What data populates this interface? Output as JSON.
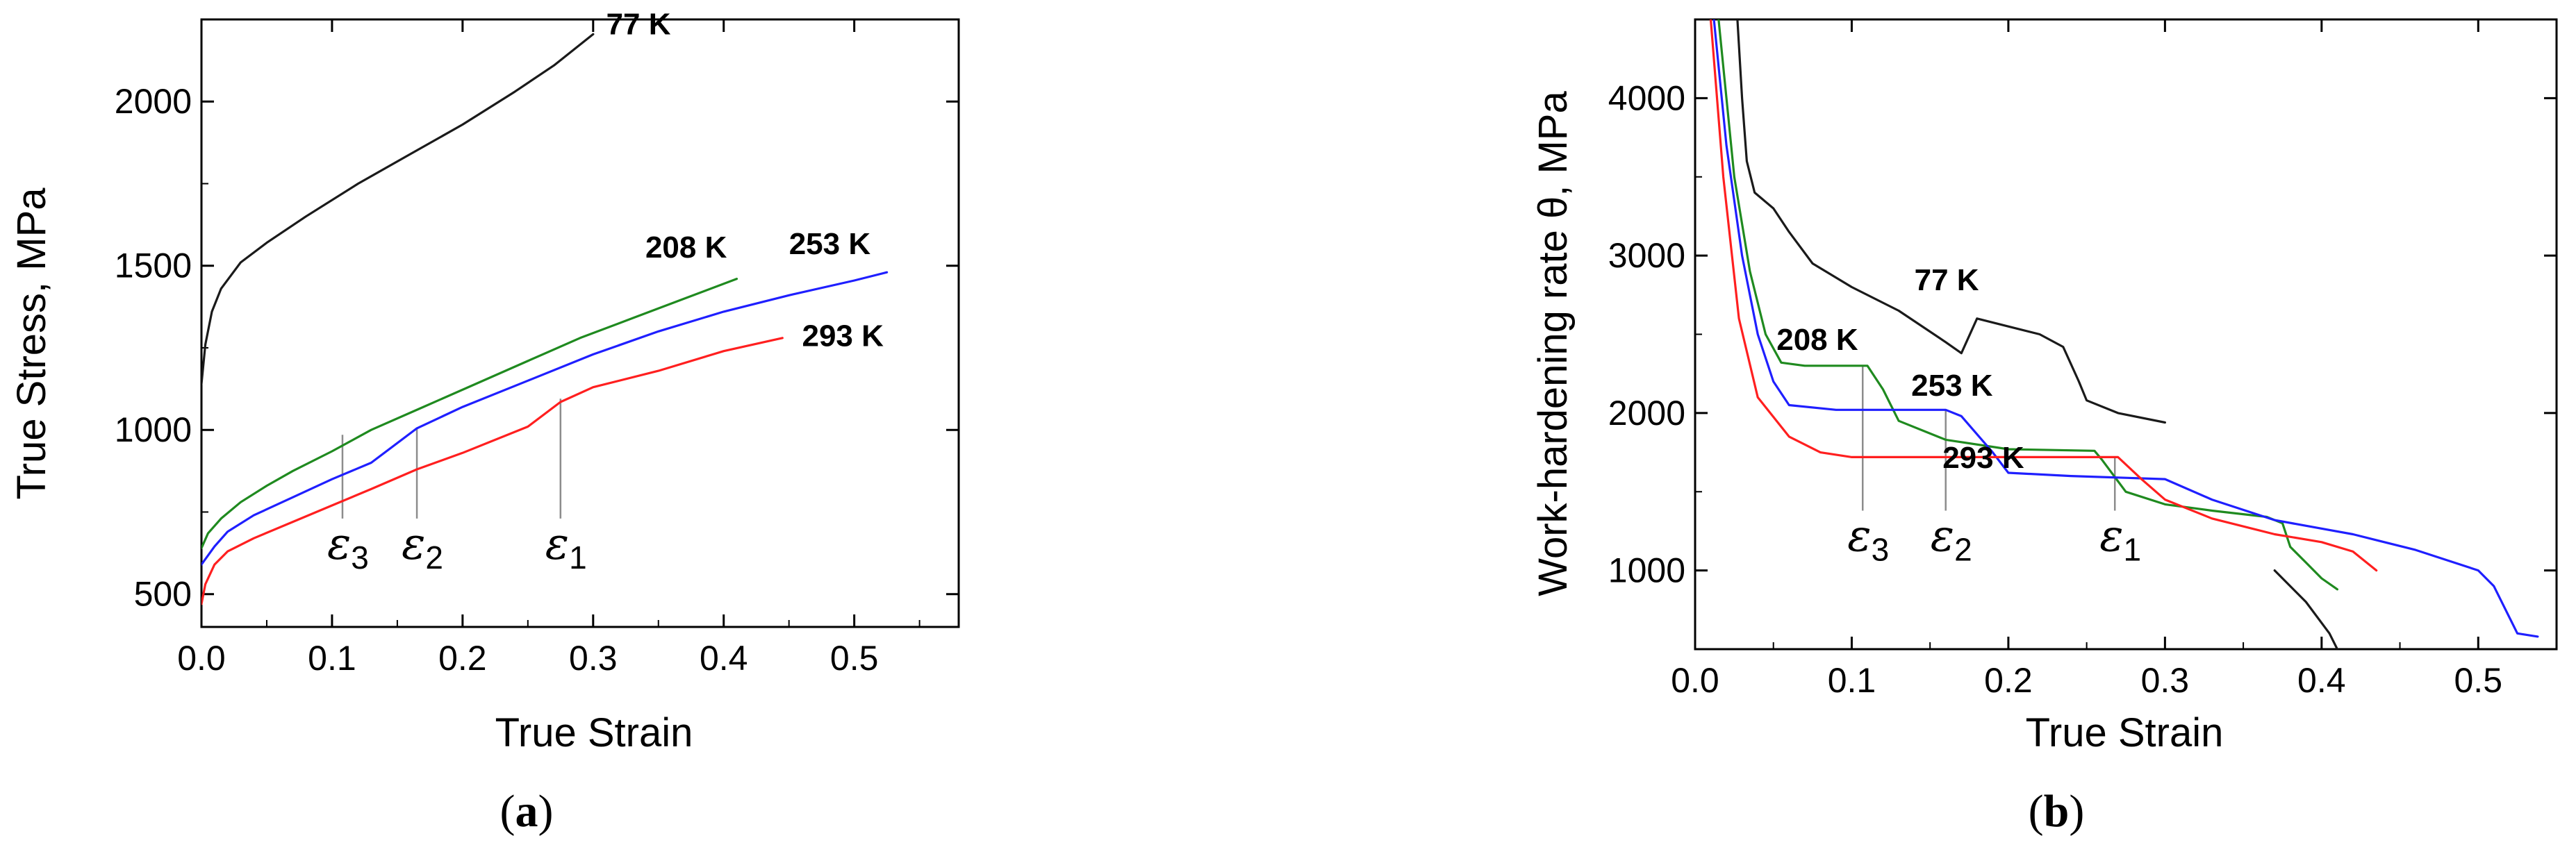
{
  "colors": {
    "77 K": "#1a1a1a",
    "208 K": "#1f8a1f",
    "253 K": "#1f1fff",
    "293 K": "#ff1f1f"
  },
  "chart_data": [
    {
      "type": "line",
      "panel_label": {
        "open": "(",
        "letter": "a",
        "close": ")"
      },
      "xlabel": "True Strain",
      "ylabel": "True Stress, MPa",
      "xlim": [
        0.0,
        0.58
      ],
      "ylim": [
        400,
        2250
      ],
      "xticks": [
        0.0,
        0.1,
        0.2,
        0.3,
        0.4,
        0.5
      ],
      "xtick_labels": [
        "0.0",
        "0.1",
        "0.2",
        "0.3",
        "0.4",
        "0.5"
      ],
      "yticks": [
        500,
        1000,
        1500,
        2000
      ],
      "ytick_labels": [
        "500",
        "1000",
        "1500",
        "2000"
      ],
      "series": [
        {
          "name": "77 K",
          "points": [
            [
              0.0,
              1140
            ],
            [
              0.003,
              1260
            ],
            [
              0.008,
              1360
            ],
            [
              0.015,
              1430
            ],
            [
              0.03,
              1510
            ],
            [
              0.05,
              1570
            ],
            [
              0.08,
              1650
            ],
            [
              0.12,
              1750
            ],
            [
              0.16,
              1840
            ],
            [
              0.2,
              1930
            ],
            [
              0.24,
              2030
            ],
            [
              0.27,
              2110
            ],
            [
              0.3,
              2205
            ]
          ]
        },
        {
          "name": "208 K",
          "points": [
            [
              0.0,
              640
            ],
            [
              0.005,
              685
            ],
            [
              0.015,
              730
            ],
            [
              0.03,
              780
            ],
            [
              0.05,
              830
            ],
            [
              0.07,
              875
            ],
            [
              0.1,
              935
            ],
            [
              0.13,
              1000
            ],
            [
              0.17,
              1070
            ],
            [
              0.21,
              1140
            ],
            [
              0.25,
              1210
            ],
            [
              0.29,
              1280
            ],
            [
              0.33,
              1340
            ],
            [
              0.37,
              1400
            ],
            [
              0.41,
              1460
            ]
          ]
        },
        {
          "name": "253 K",
          "points": [
            [
              0.0,
              590
            ],
            [
              0.01,
              645
            ],
            [
              0.02,
              690
            ],
            [
              0.04,
              740
            ],
            [
              0.07,
              795
            ],
            [
              0.1,
              850
            ],
            [
              0.13,
              900
            ],
            [
              0.165,
              1005
            ],
            [
              0.2,
              1070
            ],
            [
              0.25,
              1150
            ],
            [
              0.3,
              1230
            ],
            [
              0.35,
              1300
            ],
            [
              0.4,
              1360
            ],
            [
              0.45,
              1410
            ],
            [
              0.5,
              1455
            ],
            [
              0.525,
              1480
            ]
          ]
        },
        {
          "name": "293 K",
          "points": [
            [
              0.0,
              470
            ],
            [
              0.003,
              530
            ],
            [
              0.01,
              590
            ],
            [
              0.02,
              630
            ],
            [
              0.04,
              670
            ],
            [
              0.07,
              720
            ],
            [
              0.1,
              770
            ],
            [
              0.13,
              820
            ],
            [
              0.165,
              880
            ],
            [
              0.2,
              930
            ],
            [
              0.25,
              1010
            ],
            [
              0.275,
              1085
            ],
            [
              0.3,
              1130
            ],
            [
              0.35,
              1180
            ],
            [
              0.4,
              1240
            ],
            [
              0.445,
              1280
            ]
          ]
        }
      ],
      "annotations": [
        {
          "curve": "77 K",
          "x": 0.31,
          "y": 2205
        },
        {
          "curve": "208 K",
          "x": 0.34,
          "y": 1525
        },
        {
          "curve": "253 K",
          "x": 0.45,
          "y": 1535
        },
        {
          "curve": "293 K",
          "x": 0.46,
          "y": 1255
        }
      ],
      "markers": [
        {
          "symbol": "ε",
          "sub": "3",
          "x": 0.108,
          "y_top": 985,
          "y_bottom": 730
        },
        {
          "symbol": "ε",
          "sub": "2",
          "x": 0.165,
          "y_top": 1005,
          "y_bottom": 730
        },
        {
          "symbol": "ε",
          "sub": "1",
          "x": 0.275,
          "y_top": 1095,
          "y_bottom": 730
        }
      ]
    },
    {
      "type": "line",
      "panel_label": {
        "open": "(",
        "letter": "b",
        "close": ")"
      },
      "xlabel": "True Strain",
      "ylabel": "Work-hardening rate θ, MPa",
      "xlim": [
        0.0,
        0.55
      ],
      "ylim": [
        500,
        4500
      ],
      "xticks": [
        0.0,
        0.1,
        0.2,
        0.3,
        0.4,
        0.5
      ],
      "xtick_labels": [
        "0.0",
        "0.1",
        "0.2",
        "0.3",
        "0.4",
        "0.5"
      ],
      "yticks": [
        1000,
        2000,
        3000,
        4000
      ],
      "ytick_labels": [
        "1000",
        "2000",
        "3000",
        "4000"
      ],
      "series": [
        {
          "name": "77 K",
          "points": [
            [
              0.027,
              4500
            ],
            [
              0.03,
              4000
            ],
            [
              0.033,
              3600
            ],
            [
              0.038,
              3400
            ],
            [
              0.05,
              3300
            ],
            [
              0.06,
              3150
            ],
            [
              0.075,
              2950
            ],
            [
              0.1,
              2800
            ],
            [
              0.13,
              2650
            ],
            [
              0.16,
              2450
            ],
            [
              0.17,
              2380
            ],
            [
              0.18,
              2600
            ],
            [
              0.2,
              2550
            ],
            [
              0.22,
              2500
            ],
            [
              0.235,
              2420
            ],
            [
              0.245,
              2200
            ],
            [
              0.25,
              2080
            ],
            [
              0.27,
              2000
            ],
            [
              0.3,
              1940
            ]
          ]
        },
        {
          "name": "77 K",
          "points": [
            [
              0.37,
              1000
            ],
            [
              0.39,
              800
            ],
            [
              0.405,
              600
            ],
            [
              0.41,
              500
            ]
          ]
        },
        {
          "name": "208 K",
          "points": [
            [
              0.015,
              4500
            ],
            [
              0.025,
              3500
            ],
            [
              0.035,
              2900
            ],
            [
              0.045,
              2500
            ],
            [
              0.055,
              2320
            ],
            [
              0.07,
              2300
            ],
            [
              0.11,
              2300
            ],
            [
              0.12,
              2150
            ],
            [
              0.13,
              1950
            ],
            [
              0.16,
              1830
            ],
            [
              0.2,
              1770
            ],
            [
              0.255,
              1760
            ],
            [
              0.26,
              1700
            ],
            [
              0.275,
              1500
            ],
            [
              0.3,
              1420
            ],
            [
              0.33,
              1380
            ],
            [
              0.365,
              1340
            ],
            [
              0.375,
              1300
            ],
            [
              0.38,
              1150
            ],
            [
              0.39,
              1050
            ],
            [
              0.4,
              950
            ],
            [
              0.41,
              880
            ]
          ]
        },
        {
          "name": "253 K",
          "points": [
            [
              0.012,
              4500
            ],
            [
              0.02,
              3700
            ],
            [
              0.03,
              3000
            ],
            [
              0.04,
              2500
            ],
            [
              0.05,
              2200
            ],
            [
              0.06,
              2050
            ],
            [
              0.09,
              2020
            ],
            [
              0.16,
              2020
            ],
            [
              0.17,
              1980
            ],
            [
              0.19,
              1750
            ],
            [
              0.2,
              1620
            ],
            [
              0.24,
              1600
            ],
            [
              0.3,
              1580
            ],
            [
              0.33,
              1450
            ],
            [
              0.37,
              1320
            ],
            [
              0.42,
              1230
            ],
            [
              0.46,
              1130
            ],
            [
              0.5,
              1000
            ],
            [
              0.51,
              900
            ],
            [
              0.525,
              600
            ],
            [
              0.538,
              580
            ]
          ]
        },
        {
          "name": "293 K",
          "points": [
            [
              0.01,
              4500
            ],
            [
              0.018,
              3500
            ],
            [
              0.028,
              2600
            ],
            [
              0.04,
              2100
            ],
            [
              0.06,
              1850
            ],
            [
              0.08,
              1750
            ],
            [
              0.1,
              1720
            ],
            [
              0.27,
              1720
            ],
            [
              0.285,
              1580
            ],
            [
              0.3,
              1450
            ],
            [
              0.33,
              1330
            ],
            [
              0.37,
              1230
            ],
            [
              0.4,
              1180
            ],
            [
              0.42,
              1120
            ],
            [
              0.435,
              1000
            ]
          ]
        }
      ],
      "annotations": [
        {
          "curve": "77 K",
          "x": 0.14,
          "y": 2780
        },
        {
          "curve": "208 K",
          "x": 0.052,
          "y": 2400
        },
        {
          "curve": "253 K",
          "x": 0.138,
          "y": 2110
        },
        {
          "curve": "293 K",
          "x": 0.158,
          "y": 1650
        }
      ],
      "markers": [
        {
          "symbol": "ε",
          "sub": "3",
          "x": 0.107,
          "y_top": 2300,
          "y_bottom": 1380
        },
        {
          "symbol": "ε",
          "sub": "2",
          "x": 0.16,
          "y_top": 2020,
          "y_bottom": 1380
        },
        {
          "symbol": "ε",
          "sub": "1",
          "x": 0.268,
          "y_top": 1720,
          "y_bottom": 1380
        }
      ]
    }
  ]
}
